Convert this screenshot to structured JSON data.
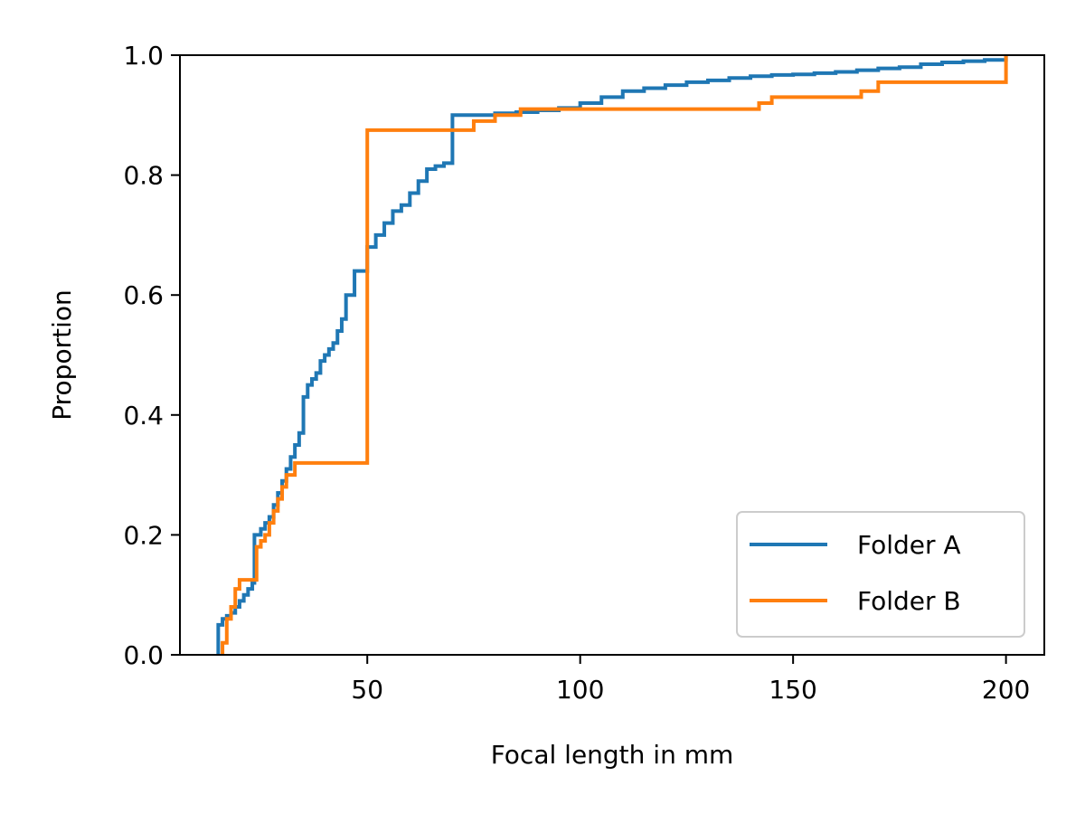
{
  "chart_data": {
    "type": "line",
    "step": true,
    "title": "",
    "xlabel": "Focal length in mm",
    "ylabel": "Proportion",
    "xlim": [
      6,
      209
    ],
    "ylim": [
      0,
      1
    ],
    "xticks": [
      50,
      100,
      150,
      200
    ],
    "xtick_labels": [
      "50",
      "100",
      "150",
      "200"
    ],
    "yticks": [
      0,
      0.2,
      0.4,
      0.6,
      0.8,
      1.0
    ],
    "ytick_labels": [
      "0.0",
      "0.2",
      "0.4",
      "0.6",
      "0.8",
      "1.0"
    ],
    "grid": false,
    "legend_position": "lower-right",
    "series": [
      {
        "name": "Folder A",
        "color": "#1f77b4",
        "points": [
          [
            15,
            0
          ],
          [
            15,
            0.05
          ],
          [
            16,
            0.06
          ],
          [
            17,
            0.065
          ],
          [
            18,
            0.07
          ],
          [
            19,
            0.08
          ],
          [
            20,
            0.09
          ],
          [
            21,
            0.1
          ],
          [
            22,
            0.11
          ],
          [
            23,
            0.12
          ],
          [
            23.5,
            0.2
          ],
          [
            24,
            0.2
          ],
          [
            25,
            0.21
          ],
          [
            26,
            0.22
          ],
          [
            27,
            0.23
          ],
          [
            28,
            0.25
          ],
          [
            29,
            0.27
          ],
          [
            30,
            0.29
          ],
          [
            31,
            0.31
          ],
          [
            32,
            0.33
          ],
          [
            33,
            0.35
          ],
          [
            34,
            0.37
          ],
          [
            35,
            0.43
          ],
          [
            36,
            0.45
          ],
          [
            37,
            0.46
          ],
          [
            38,
            0.47
          ],
          [
            39,
            0.49
          ],
          [
            40,
            0.5
          ],
          [
            41,
            0.51
          ],
          [
            42,
            0.52
          ],
          [
            43,
            0.54
          ],
          [
            44,
            0.56
          ],
          [
            45,
            0.6
          ],
          [
            46,
            0.6
          ],
          [
            47,
            0.64
          ],
          [
            48,
            0.64
          ],
          [
            49,
            0.64
          ],
          [
            50,
            0.68
          ],
          [
            52,
            0.7
          ],
          [
            54,
            0.72
          ],
          [
            56,
            0.74
          ],
          [
            58,
            0.75
          ],
          [
            60,
            0.77
          ],
          [
            62,
            0.79
          ],
          [
            64,
            0.81
          ],
          [
            66,
            0.815
          ],
          [
            68,
            0.82
          ],
          [
            70,
            0.9
          ],
          [
            75,
            0.9
          ],
          [
            80,
            0.903
          ],
          [
            85,
            0.905
          ],
          [
            90,
            0.908
          ],
          [
            95,
            0.912
          ],
          [
            100,
            0.92
          ],
          [
            105,
            0.93
          ],
          [
            110,
            0.94
          ],
          [
            115,
            0.945
          ],
          [
            120,
            0.95
          ],
          [
            125,
            0.955
          ],
          [
            130,
            0.958
          ],
          [
            135,
            0.962
          ],
          [
            140,
            0.965
          ],
          [
            145,
            0.967
          ],
          [
            150,
            0.968
          ],
          [
            155,
            0.97
          ],
          [
            160,
            0.972
          ],
          [
            165,
            0.975
          ],
          [
            170,
            0.978
          ],
          [
            175,
            0.98
          ],
          [
            180,
            0.985
          ],
          [
            185,
            0.988
          ],
          [
            190,
            0.99
          ],
          [
            195,
            0.992
          ],
          [
            200,
            0.993
          ],
          [
            200,
            1.0
          ]
        ]
      },
      {
        "name": "Folder B",
        "color": "#ff7f0e",
        "points": [
          [
            16,
            0
          ],
          [
            16,
            0.02
          ],
          [
            17,
            0.06
          ],
          [
            18,
            0.08
          ],
          [
            19,
            0.11
          ],
          [
            20,
            0.125
          ],
          [
            24,
            0.18
          ],
          [
            25,
            0.19
          ],
          [
            26,
            0.2
          ],
          [
            27,
            0.22
          ],
          [
            28,
            0.24
          ],
          [
            29,
            0.26
          ],
          [
            30,
            0.28
          ],
          [
            31,
            0.3
          ],
          [
            33,
            0.32
          ],
          [
            50,
            0.875
          ],
          [
            70,
            0.875
          ],
          [
            75,
            0.89
          ],
          [
            80,
            0.9
          ],
          [
            86,
            0.91
          ],
          [
            140,
            0.91
          ],
          [
            142,
            0.92
          ],
          [
            145,
            0.93
          ],
          [
            160,
            0.93
          ],
          [
            166,
            0.94
          ],
          [
            170,
            0.955
          ],
          [
            200,
            0.955
          ],
          [
            200,
            1.0
          ]
        ]
      }
    ]
  }
}
